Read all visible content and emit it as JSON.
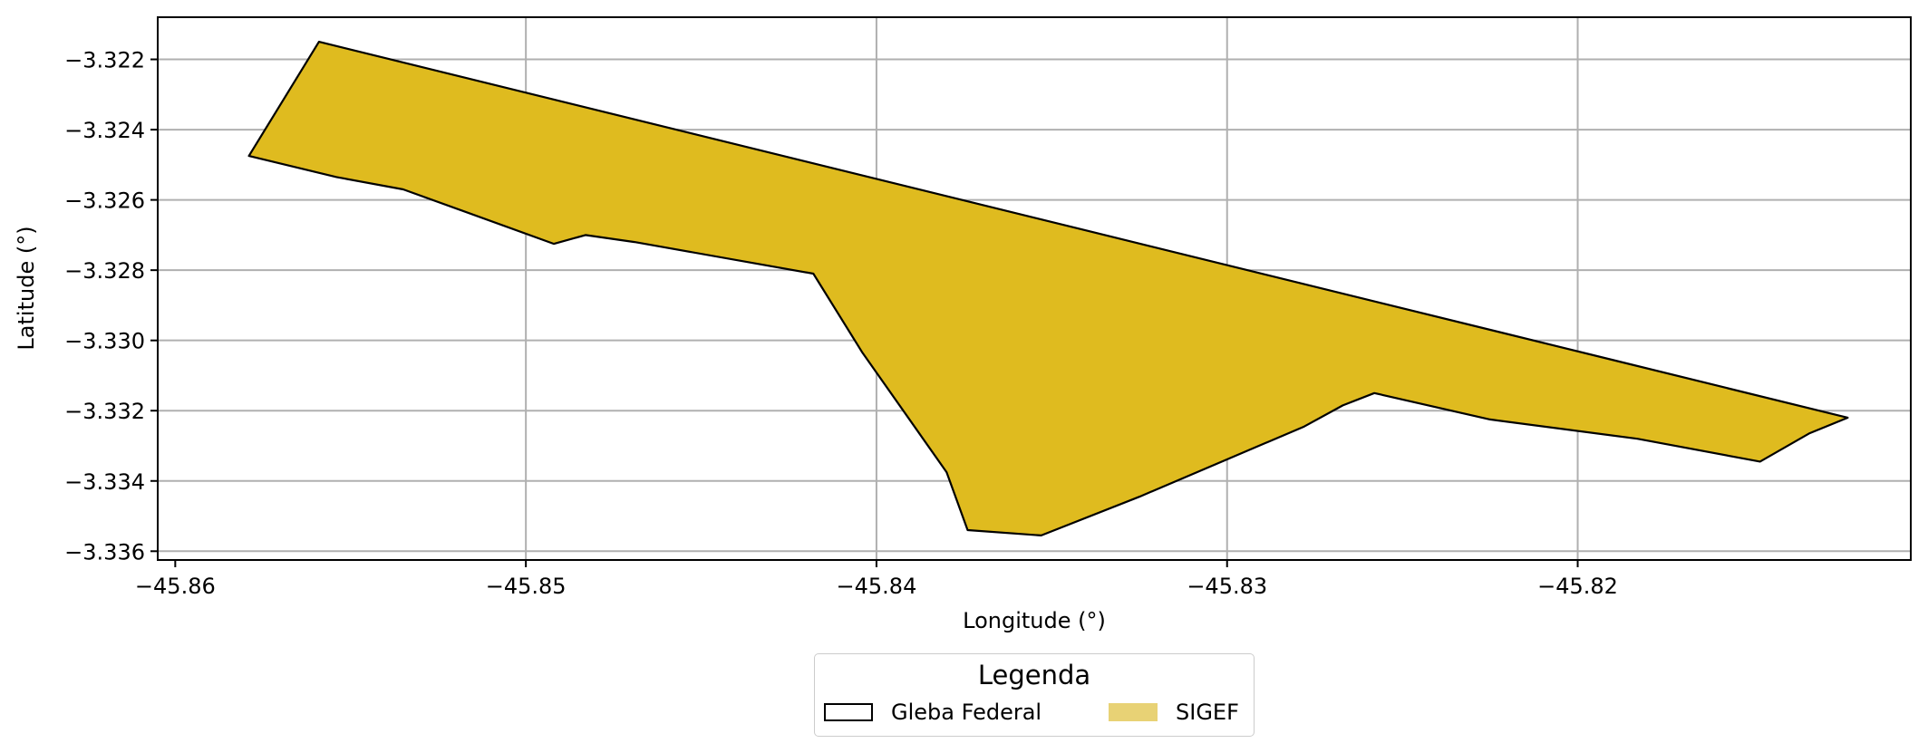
{
  "chart_data": {
    "type": "map",
    "xlabel": "Longitude (°)",
    "ylabel": "Latitude (°)",
    "xlim": [
      -45.8605,
      -45.8105
    ],
    "ylim": [
      -3.33625,
      -3.3208
    ],
    "xticks": [
      -45.86,
      -45.85,
      -45.84,
      -45.83,
      -45.82
    ],
    "xtick_labels": [
      "−45.86",
      "−45.85",
      "−45.84",
      "−45.83",
      "−45.82"
    ],
    "yticks": [
      -3.322,
      -3.324,
      -3.326,
      -3.328,
      -3.33,
      -3.332,
      -3.334,
      -3.336
    ],
    "ytick_labels": [
      "−3.322",
      "−3.324",
      "−3.326",
      "−3.328",
      "−3.330",
      "−3.332",
      "−3.334",
      "−3.336"
    ],
    "grid": true,
    "polygon": {
      "fill": "#dfbb1f",
      "stroke": "#000000",
      "coords": [
        [
          -45.8579,
          -3.32475
        ],
        [
          -45.8559,
          -3.3215
        ],
        [
          -45.8123,
          -3.3322
        ],
        [
          -45.8134,
          -3.33265
        ],
        [
          -45.8148,
          -3.33345
        ],
        [
          -45.8183,
          -3.3328
        ],
        [
          -45.8225,
          -3.33225
        ],
        [
          -45.8258,
          -3.3315
        ],
        [
          -45.8267,
          -3.33185
        ],
        [
          -45.8278,
          -3.33245
        ],
        [
          -45.8325,
          -3.33445
        ],
        [
          -45.8353,
          -3.33555
        ],
        [
          -45.8374,
          -3.3354
        ],
        [
          -45.838,
          -3.33375
        ],
        [
          -45.8404,
          -3.33035
        ],
        [
          -45.8418,
          -3.3281
        ],
        [
          -45.8469,
          -3.3272
        ],
        [
          -45.8483,
          -3.327
        ],
        [
          -45.8492,
          -3.32725
        ],
        [
          -45.8535,
          -3.3257
        ],
        [
          -45.8554,
          -3.32535
        ],
        [
          -45.8579,
          -3.32475
        ]
      ]
    },
    "legend": {
      "title": "Legenda",
      "placement": "below",
      "items": [
        {
          "label": "Gleba Federal",
          "style": "outline",
          "color": "#000000"
        },
        {
          "label": "SIGEF",
          "style": "fill",
          "color": "#e8d275"
        }
      ]
    }
  }
}
